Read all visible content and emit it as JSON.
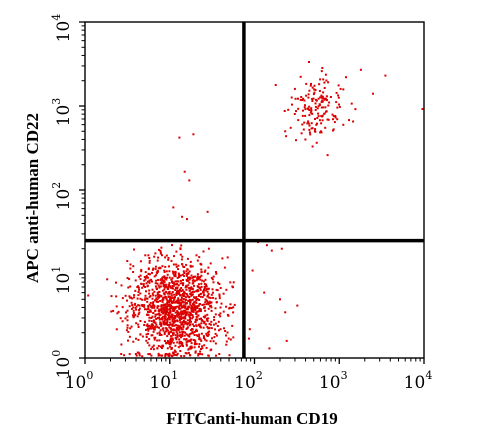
{
  "chart_data": {
    "type": "scatter",
    "xlabel": "FITCanti-human CD19",
    "ylabel": "APC anti-human CD22",
    "x_scale": "log",
    "y_scale": "log",
    "xlim": [
      1,
      10000
    ],
    "ylim": [
      1,
      10000
    ],
    "x_ticks": [
      {
        "base": "10",
        "exp": "0",
        "value": 1
      },
      {
        "base": "10",
        "exp": "1",
        "value": 10
      },
      {
        "base": "10",
        "exp": "2",
        "value": 100
      },
      {
        "base": "10",
        "exp": "3",
        "value": 1000
      },
      {
        "base": "10",
        "exp": "4",
        "value": 10000
      }
    ],
    "y_ticks": [
      {
        "base": "10",
        "exp": "0",
        "value": 1
      },
      {
        "base": "10",
        "exp": "1",
        "value": 10
      },
      {
        "base": "10",
        "exp": "2",
        "value": 100
      },
      {
        "base": "10",
        "exp": "3",
        "value": 1000
      },
      {
        "base": "10",
        "exp": "4",
        "value": 10000
      }
    ],
    "quadrant_gates": {
      "x": 75,
      "y": 25
    },
    "point_color": "#dd0000",
    "grid": false,
    "populations": [
      {
        "region": "lower-left (CD19- CD22-)",
        "center": [
          12,
          4
        ],
        "spread_log": [
          0.28,
          0.3
        ],
        "approx_events": 1400
      },
      {
        "region": "upper-right (CD19+ CD22+)",
        "center": [
          550,
          950
        ],
        "spread_log": [
          0.17,
          0.19
        ],
        "approx_events": 160
      }
    ],
    "points": [
      [
        13,
        420
      ],
      [
        19,
        460
      ],
      [
        15,
        165
      ],
      [
        17,
        130
      ],
      [
        11,
        62
      ],
      [
        14,
        48
      ],
      [
        28,
        55
      ],
      [
        16,
        45
      ],
      [
        92,
        25
      ],
      [
        110,
        24
      ],
      [
        140,
        22
      ],
      [
        95,
        11
      ],
      [
        160,
        19
      ],
      [
        210,
        20
      ],
      [
        130,
        6
      ],
      [
        230,
        3.5
      ],
      [
        200,
        5
      ],
      [
        320,
        4.2
      ],
      [
        150,
        1.3
      ],
      [
        86,
        1.7
      ],
      [
        88,
        2.2
      ],
      [
        240,
        1.6
      ],
      [
        3500,
        2300
      ],
      [
        1800,
        2700
      ],
      [
        2500,
        1400
      ],
      [
        9600,
        920
      ],
      [
        1200,
        2200
      ],
      [
        300,
        1600
      ],
      [
        250,
        900
      ],
      [
        420,
        620
      ],
      [
        230,
        500
      ]
    ]
  }
}
